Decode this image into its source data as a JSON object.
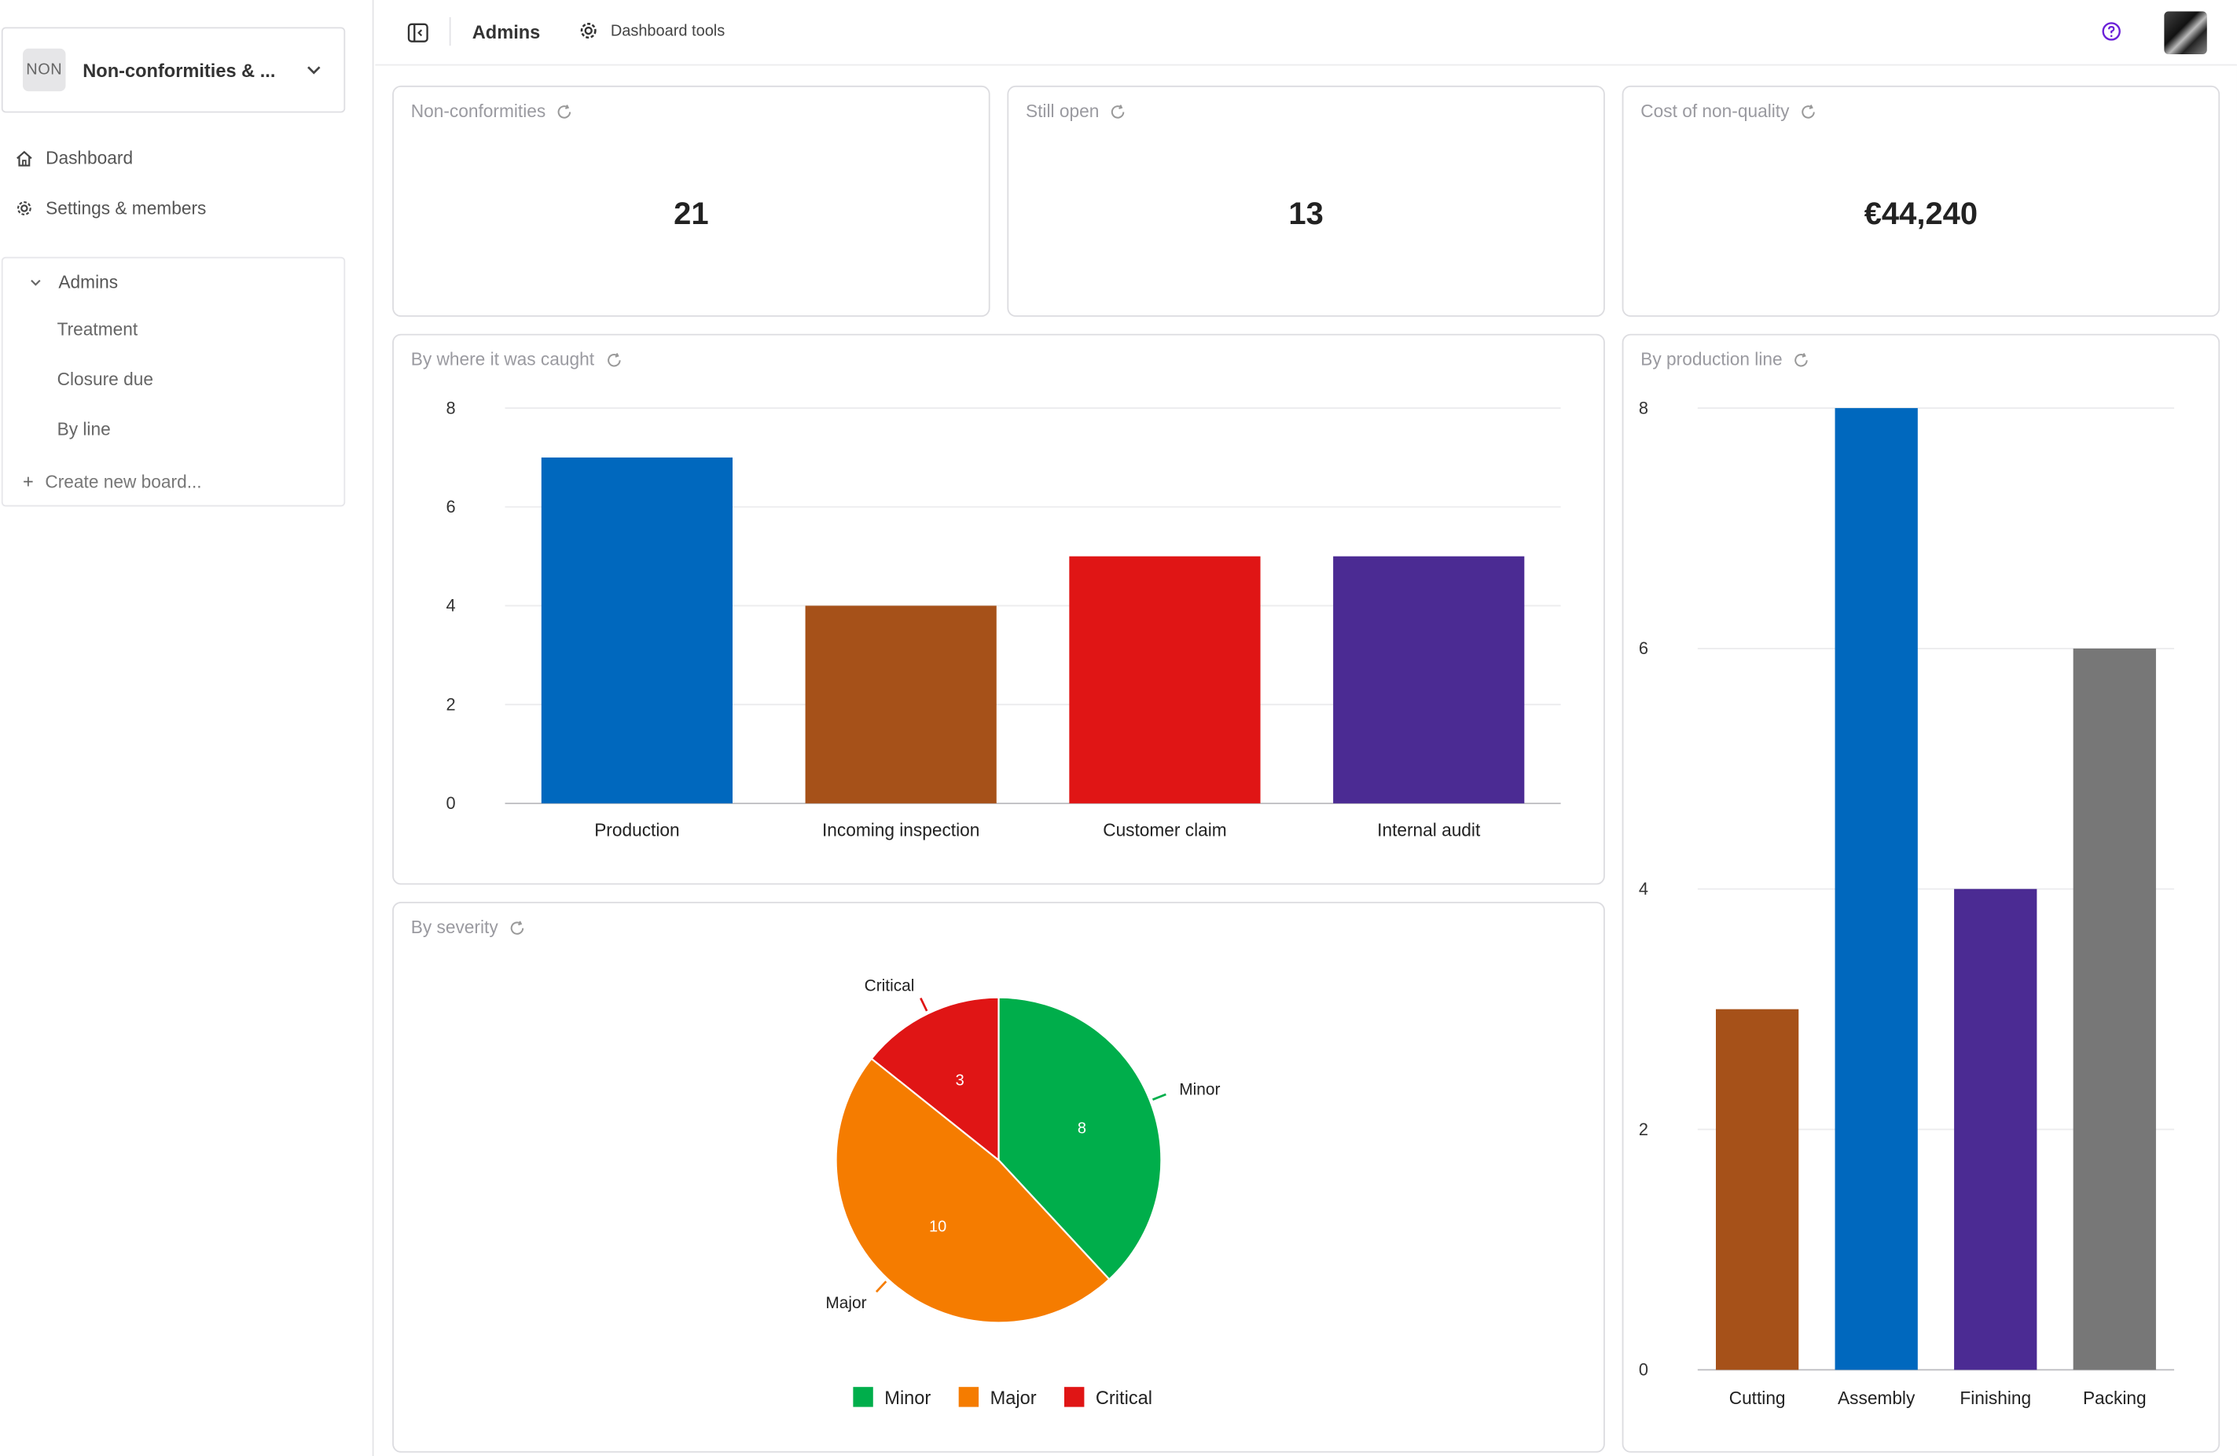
{
  "workspace": {
    "badge": "NON",
    "name": "Non-conformities & ..."
  },
  "nav": {
    "dashboard": "Dashboard",
    "settings": "Settings & members"
  },
  "boards": {
    "group": "Admins",
    "items": [
      "Treatment",
      "Closure due",
      "By line"
    ],
    "create": "Create new board..."
  },
  "topbar": {
    "title": "Admins",
    "tools": "Dashboard tools"
  },
  "kpis": [
    {
      "label": "Non-conformities",
      "value": "21"
    },
    {
      "label": "Still open",
      "value": "13"
    },
    {
      "label": "Cost of non-quality",
      "value": "€44,240"
    }
  ],
  "colors": {
    "blue": "#0068be",
    "brown": "#a65119",
    "red": "#e01515",
    "purple": "#4b2b93",
    "grey": "#777777",
    "green": "#00ae4b",
    "orange": "#f57c00",
    "help": "#6b21d8"
  },
  "chart_data": [
    {
      "type": "bar",
      "title": "By where it was caught",
      "categories": [
        "Production",
        "Incoming inspection",
        "Customer claim",
        "Internal audit"
      ],
      "values": [
        7,
        4,
        5,
        5
      ],
      "colors": [
        "#0068be",
        "#a65119",
        "#e01515",
        "#4b2b93"
      ],
      "yticks": [
        "0",
        "2",
        "4",
        "6",
        "8"
      ],
      "ylim": [
        0,
        8
      ],
      "grid": true
    },
    {
      "type": "pie",
      "title": "By severity",
      "slices": [
        {
          "label": "Minor",
          "value": 8,
          "color": "#00ae4b"
        },
        {
          "label": "Major",
          "value": 10,
          "color": "#f57c00"
        },
        {
          "label": "Critical",
          "value": 3,
          "color": "#e01515"
        }
      ],
      "legend": "bottom"
    },
    {
      "type": "bar",
      "title": "By production line",
      "categories": [
        "Cutting",
        "Assembly",
        "Finishing",
        "Packing"
      ],
      "values": [
        3,
        8,
        4,
        6
      ],
      "colors": [
        "#a65119",
        "#0068be",
        "#4b2b93",
        "#777777"
      ],
      "yticks": [
        "0",
        "2",
        "4",
        "6",
        "8"
      ],
      "ylim": [
        0,
        8
      ],
      "grid": true
    }
  ]
}
